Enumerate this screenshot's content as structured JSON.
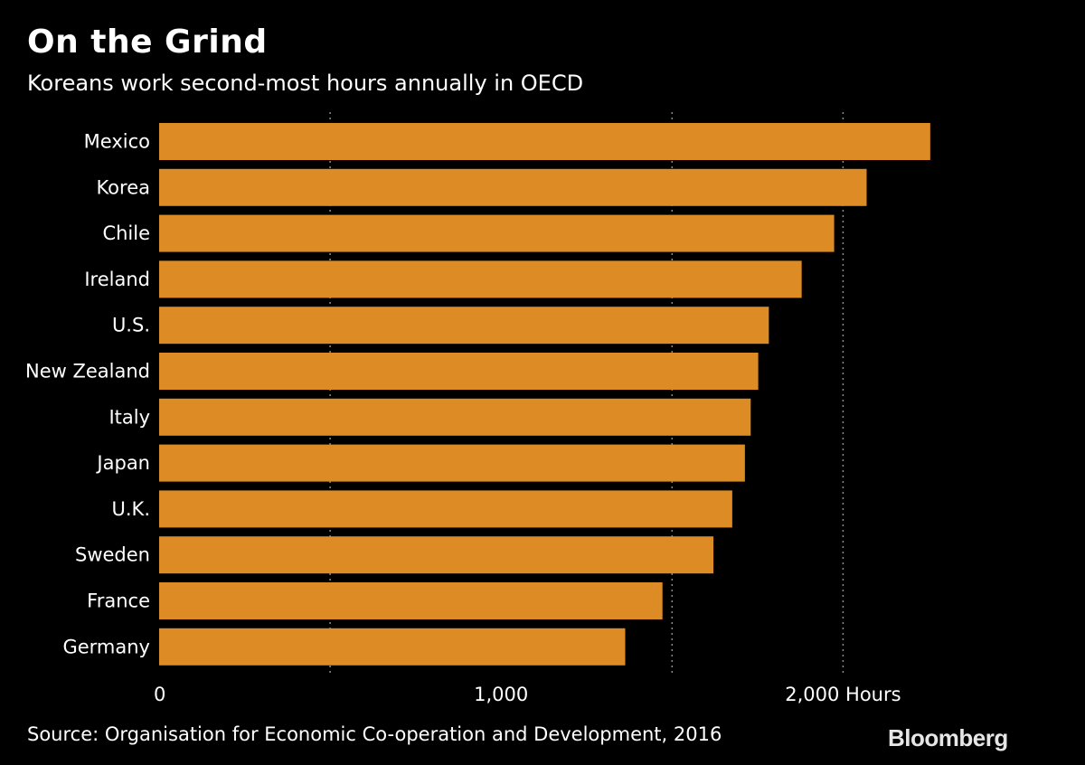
{
  "header": {
    "title": "On the Grind",
    "subtitle": "Koreans work second-most hours annually in OECD"
  },
  "footer": {
    "source": "Source: Organisation for Economic Co-operation and Development, 2016",
    "brand": "Bloomberg"
  },
  "colors": {
    "background": "#000000",
    "bar": "#dc8b25",
    "gridline": "#8a8a8a",
    "text": "#ffffff"
  },
  "chart_data": {
    "type": "bar",
    "orientation": "horizontal",
    "title": "On the Grind",
    "subtitle": "Koreans work second-most hours annually in OECD",
    "categories": [
      "Mexico",
      "Korea",
      "Chile",
      "Ireland",
      "U.S.",
      "New Zealand",
      "Italy",
      "Japan",
      "U.K.",
      "Sweden",
      "France",
      "Germany"
    ],
    "values": [
      2255,
      2069,
      1974,
      1879,
      1783,
      1752,
      1730,
      1713,
      1676,
      1621,
      1472,
      1363
    ],
    "xlim": [
      0,
      2500
    ],
    "gridlines": [
      500,
      1500,
      2000
    ],
    "xticks": [
      {
        "value": 0,
        "label": "0"
      },
      {
        "value": 1000,
        "label": "1,000"
      },
      {
        "value": 2000,
        "label": "2,000 Hours"
      }
    ],
    "grid": true,
    "legend": "none"
  }
}
